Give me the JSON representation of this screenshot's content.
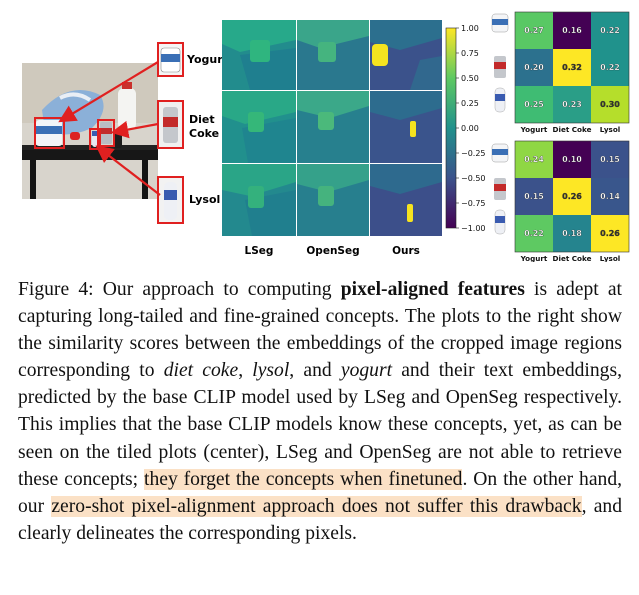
{
  "figure": {
    "photo_labels": [
      "Yogurt",
      "Diet",
      "Coke",
      "Lysol"
    ],
    "colorbar_ticks": [
      "1.00",
      "0.75",
      "0.50",
      "0.25",
      "0.00",
      "−0.25",
      "−0.50",
      "−0.75",
      "−1.00"
    ],
    "method_labels": [
      "LSeg",
      "OpenSeg",
      "Ours"
    ],
    "matrix_axis_labels": [
      "Yogurt",
      "Diet Coke",
      "Lysol"
    ],
    "matrix_top": [
      [
        "0.27",
        "0.16",
        "0.22"
      ],
      [
        "0.20",
        "0.32",
        "0.22"
      ],
      [
        "0.25",
        "0.23",
        "0.30"
      ]
    ],
    "matrix_bottom": [
      [
        "0.24",
        "0.10",
        "0.15"
      ],
      [
        "0.15",
        "0.26",
        "0.14"
      ],
      [
        "0.22",
        "0.18",
        "0.26"
      ]
    ],
    "colors": {
      "viridis_low": "#440154",
      "viridis_mid": "#21918c",
      "viridis_high": "#fde725",
      "highlight": "#fbe1c6",
      "arrow": "#e02020"
    }
  },
  "caption": {
    "label": "Figure 4:",
    "t1": " Our approach to computing ",
    "bold": "pixel-aligned features",
    "t2": " is adept at capturing long-tailed and fine-grained concepts. The plots to the right show the similarity scores between the embeddings of the cropped image regions corresponding to ",
    "i1": "diet coke",
    "t3": ", ",
    "i2": "lysol",
    "t4": ", and ",
    "i3": "yogurt",
    "t5": " and their text embeddings, predicted by the base CLIP model used by LSeg and OpenSeg respectively. This implies that the base CLIP models know these concepts, yet, as can be seen on the tiled plots (center), LSeg and OpenSeg are not able to retrieve these concepts; ",
    "hl1": "they forget the concepts when finetuned",
    "t6": ". On the other hand, our ",
    "hl2": "zero-shot pixel-alignment approach does not suffer this drawback",
    "t7": ", and clearly delineates the corresponding pixels."
  }
}
